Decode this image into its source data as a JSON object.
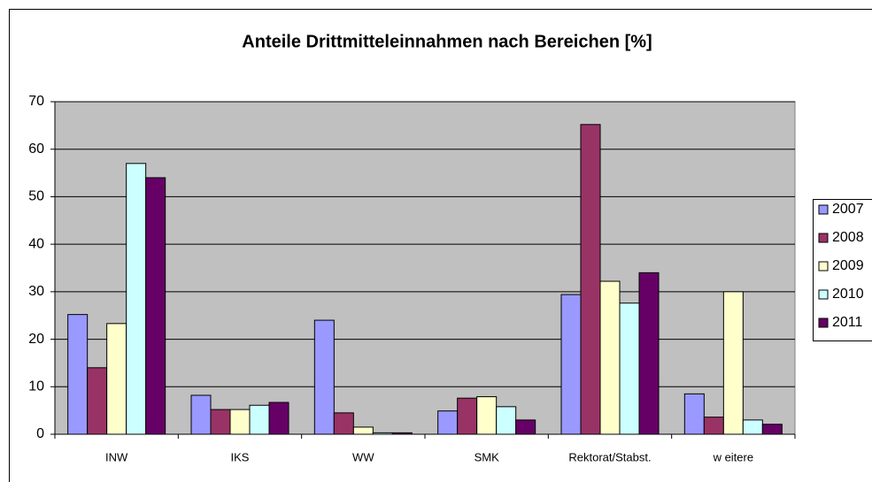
{
  "chart_data": {
    "type": "bar",
    "title": "Anteile Drittmitteleinnahmen nach Bereichen [%]",
    "categories": [
      "INW",
      "IKS",
      "WW",
      "SMK",
      "Rektorat/Stabst.",
      "w eitere"
    ],
    "series": [
      {
        "name": "2007",
        "color": "#9999ff",
        "values": [
          25.2,
          8.2,
          24,
          4.9,
          29.4,
          8.5
        ]
      },
      {
        "name": "2008",
        "color": "#993366",
        "values": [
          14,
          5.2,
          4.5,
          7.6,
          65.2,
          3.6
        ]
      },
      {
        "name": "2009",
        "color": "#ffffcc",
        "values": [
          23.3,
          5.2,
          1.5,
          7.9,
          32.2,
          30
        ]
      },
      {
        "name": "2010",
        "color": "#ccffff",
        "values": [
          57,
          6.1,
          0.3,
          5.8,
          27.6,
          3
        ]
      },
      {
        "name": "2011",
        "color": "#660066",
        "values": [
          54,
          6.7,
          0.3,
          3,
          34,
          2.1
        ]
      }
    ],
    "ylim": [
      0,
      70
    ],
    "yticks": [
      0,
      10,
      20,
      30,
      40,
      50,
      60,
      70
    ],
    "grid": true,
    "legend": "right"
  }
}
